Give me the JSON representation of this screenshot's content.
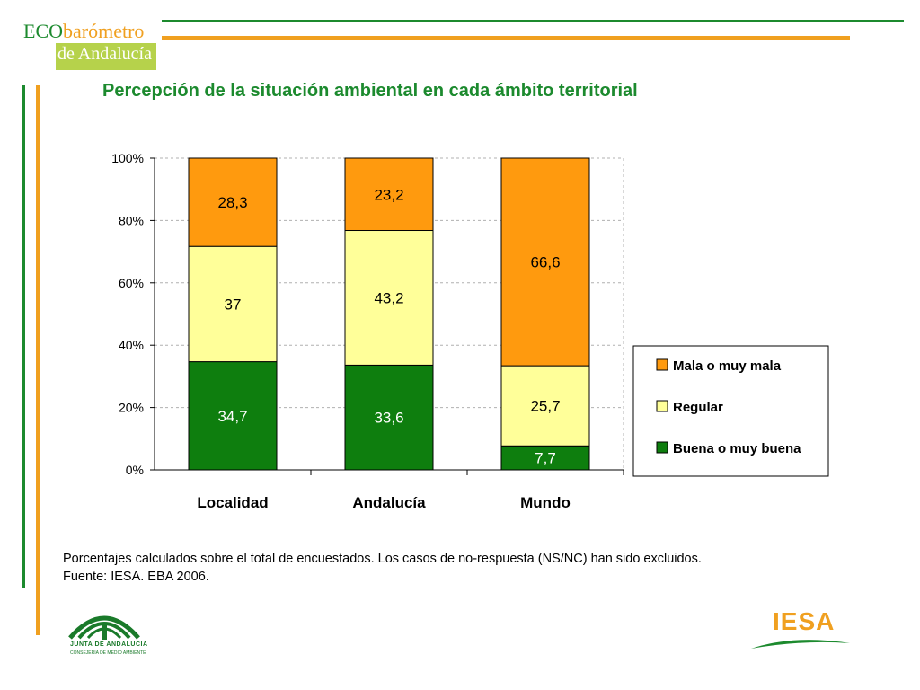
{
  "logo": {
    "eco": "ECO",
    "barometro": "barómetro",
    "region": "de Andalucía"
  },
  "title": "Percepción de la situación ambiental en cada ámbito territorial",
  "note_line1": "Porcentajes calculados sobre el total de encuestados. Los casos de no-respuesta (NS/NC) han sido excluidos.",
  "note_line2": "Fuente: IESA. EBA 2006.",
  "footer": {
    "junta": "JUNTA DE ANDALUCIA",
    "consejeria": "CONSEJERIA DE MEDIO AMBIENTE",
    "iesa": "IESA"
  },
  "colors": {
    "green": "#1c8a2e",
    "orange": "#f0a020",
    "lime": "#b6d24b",
    "bar_bad": "#ff9a0e",
    "bar_regular": "#ffff99",
    "bar_good": "#0e7e0e"
  },
  "chart_data": {
    "type": "bar",
    "stacked": true,
    "categories": [
      "Localidad",
      "Andalucía",
      "Mundo"
    ],
    "series": [
      {
        "name": "Buena o muy buena",
        "values": [
          34.7,
          33.6,
          7.7
        ],
        "labels": [
          "34,7",
          "33,6",
          "7,7"
        ],
        "color": "#0e7e0e"
      },
      {
        "name": "Regular",
        "values": [
          37,
          43.2,
          25.7
        ],
        "labels": [
          "37",
          "43,2",
          "25,7"
        ],
        "color": "#ffff99"
      },
      {
        "name": "Mala o muy mala",
        "values": [
          28.3,
          23.2,
          66.6
        ],
        "labels": [
          "28,3",
          "23,2",
          "66,6"
        ],
        "color": "#ff9a0e"
      }
    ],
    "ylim": [
      0,
      100
    ],
    "yticks": [
      "0%",
      "20%",
      "40%",
      "60%",
      "80%",
      "100%"
    ],
    "grid": true,
    "legend": "right",
    "legend_order": [
      "Mala o muy mala",
      "Regular",
      "Buena o muy buena"
    ]
  }
}
